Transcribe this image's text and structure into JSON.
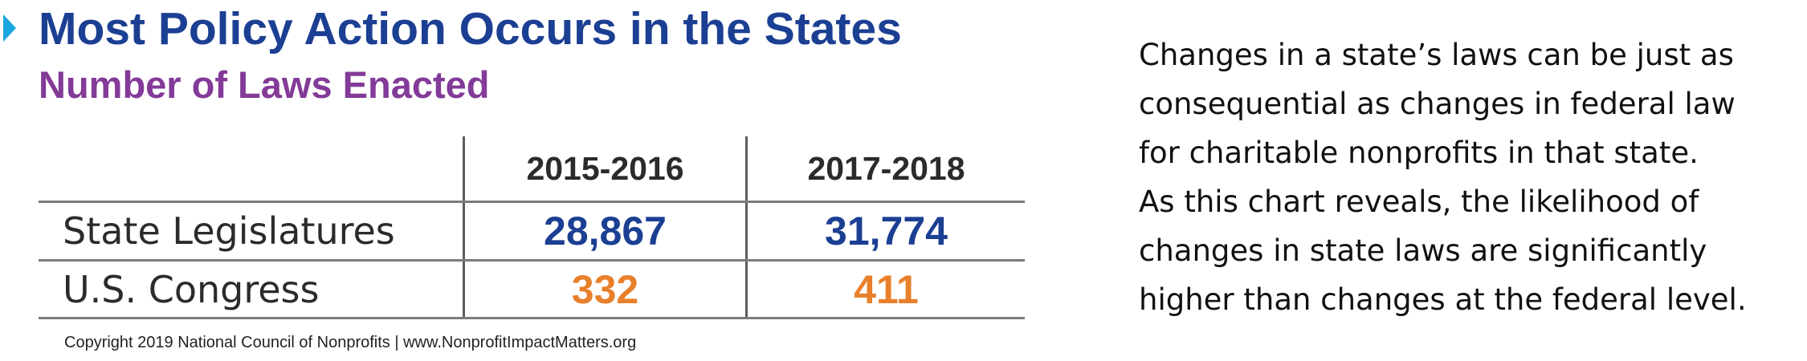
{
  "header": {
    "title": "Most Policy Action Occurs in the States",
    "subtitle": "Number of Laws Enacted"
  },
  "colors": {
    "title": "#1b3f93",
    "subtitle": "#833a98",
    "marker": "#1aa7e0",
    "state_value": "#1b3f93",
    "federal_value": "#e8802b"
  },
  "chart_data": {
    "type": "table",
    "title": "Most Policy Action Occurs in the States",
    "subtitle": "Number of Laws Enacted",
    "columns": [
      "2015-2016",
      "2017-2018"
    ],
    "rows": [
      {
        "label": "State Legislatures",
        "values": [
          "28,867",
          "31,774"
        ]
      },
      {
        "label": "U.S. Congress",
        "values": [
          "332",
          "411"
        ]
      }
    ]
  },
  "footer": {
    "copyright": "Copyright 2019 National Council of Nonprofits | www.NonprofitImpactMatters.org"
  },
  "description": {
    "lines": [
      "Changes in a state’s laws can be just as",
      "consequential as changes in federal law",
      "for charitable nonprofits in that state.",
      "As this chart reveals, the likelihood of",
      "changes in state laws are significantly",
      "higher than changes at the federal level."
    ]
  }
}
